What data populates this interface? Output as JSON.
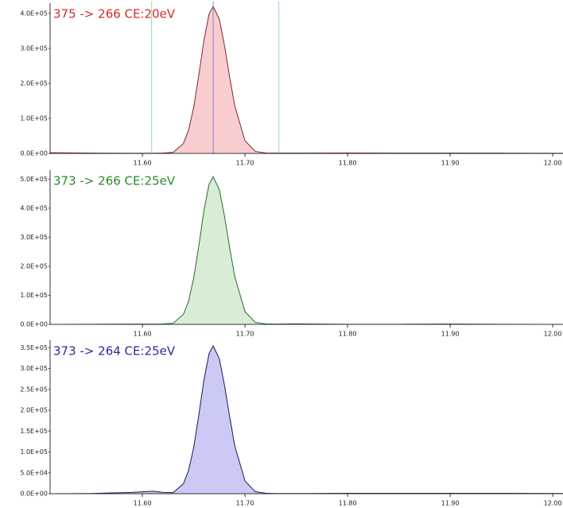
{
  "chart_data": [
    {
      "type": "area",
      "title": "375 -> 266 CE:20eV",
      "title_color": "#d42a2a",
      "color": "#7a2a2a",
      "fill": "#f9cdd0",
      "x": [
        11.51,
        11.55,
        11.59,
        11.61,
        11.62,
        11.63,
        11.64,
        11.645,
        11.65,
        11.655,
        11.66,
        11.665,
        11.669,
        11.675,
        11.68,
        11.685,
        11.69,
        11.7,
        11.71,
        11.72,
        11.73,
        11.75,
        11.8,
        11.85,
        11.9,
        11.95,
        12.01
      ],
      "values": [
        2000,
        1000,
        500,
        500,
        1000,
        3200,
        28500,
        66500,
        132000,
        224000,
        324000,
        399000,
        420000,
        383000,
        308000,
        219000,
        136000,
        36300,
        5800,
        1500,
        1000,
        1000,
        1500,
        1000,
        1000,
        1000,
        500
      ],
      "xlim": [
        11.51,
        12.01
      ],
      "ylim": [
        0,
        420000
      ],
      "xticks": [
        {
          "value": 11.6,
          "label": "11.60"
        },
        {
          "value": 11.7,
          "label": "11.70"
        },
        {
          "value": 11.8,
          "label": "11.80"
        },
        {
          "value": 11.9,
          "label": "11.90"
        },
        {
          "value": 12.0,
          "label": "12.00"
        }
      ],
      "yticks": [
        {
          "value": 0,
          "label": "0.0E+00"
        },
        {
          "value": 100000,
          "label": "1.0E+05"
        },
        {
          "value": 200000,
          "label": "2.0E+05"
        },
        {
          "value": 300000,
          "label": "3.0E+05"
        },
        {
          "value": 400000,
          "label": "4.0E+05"
        }
      ],
      "markers": [
        {
          "x": 11.609,
          "color": "#9ad69a"
        },
        {
          "x": 11.669,
          "color": "#8080e0"
        },
        {
          "x": 11.733,
          "color": "#9ad69a"
        }
      ]
    },
    {
      "type": "area",
      "title": "373 -> 266 CE:25eV",
      "title_color": "#2a8a2a",
      "color": "#2c6a2c",
      "fill": "#d8ecd6",
      "x": [
        11.51,
        11.55,
        11.59,
        11.61,
        11.62,
        11.63,
        11.64,
        11.645,
        11.65,
        11.655,
        11.66,
        11.665,
        11.669,
        11.675,
        11.68,
        11.685,
        11.69,
        11.7,
        11.71,
        11.72,
        11.73,
        11.75,
        11.8,
        11.85,
        11.9,
        11.95,
        12.01
      ],
      "values": [
        0,
        500,
        1000,
        1000,
        1500,
        3900,
        34500,
        80500,
        160000,
        271000,
        392000,
        483000,
        508000,
        463000,
        373000,
        265000,
        165000,
        43900,
        7000,
        1800,
        1000,
        2000,
        500,
        500,
        1500,
        500,
        0
      ],
      "xlim": [
        11.51,
        12.01
      ],
      "ylim": [
        0,
        520000
      ],
      "xticks": [
        {
          "value": 11.6,
          "label": "11.60"
        },
        {
          "value": 11.7,
          "label": "11.70"
        },
        {
          "value": 11.8,
          "label": "11.80"
        },
        {
          "value": 11.9,
          "label": "11.90"
        },
        {
          "value": 12.0,
          "label": "12.00"
        }
      ],
      "yticks": [
        {
          "value": 0,
          "label": "0.0E+00"
        },
        {
          "value": 100000,
          "label": "1.0E+05"
        },
        {
          "value": 200000,
          "label": "2.0E+05"
        },
        {
          "value": 300000,
          "label": "3.0E+05"
        },
        {
          "value": 400000,
          "label": "4.0E+05"
        },
        {
          "value": 500000,
          "label": "5.0E+05"
        }
      ]
    },
    {
      "type": "area",
      "title": "373 -> 264 CE:25eV",
      "title_color": "#2a2aa0",
      "color": "#1a1a5a",
      "fill": "#cacaf4",
      "x": [
        11.51,
        11.55,
        11.59,
        11.61,
        11.62,
        11.63,
        11.64,
        11.645,
        11.65,
        11.655,
        11.66,
        11.665,
        11.669,
        11.675,
        11.68,
        11.685,
        11.69,
        11.7,
        11.71,
        11.72,
        11.73,
        11.75,
        11.8,
        11.85,
        11.9,
        11.95,
        12.01
      ],
      "values": [
        0,
        500,
        3000,
        6000,
        3000,
        2700,
        24000,
        56000,
        111000,
        189000,
        273000,
        336000,
        354000,
        323000,
        260000,
        185000,
        115000,
        30600,
        4900,
        1300,
        500,
        500,
        1000,
        1000,
        1000,
        1000,
        500
      ],
      "xlim": [
        11.51,
        12.01
      ],
      "ylim": [
        0,
        360000
      ],
      "xticks": [
        {
          "value": 11.6,
          "label": "11.60"
        },
        {
          "value": 11.7,
          "label": "11.70"
        },
        {
          "value": 11.8,
          "label": "11.80"
        },
        {
          "value": 11.9,
          "label": "11.90"
        },
        {
          "value": 12.0,
          "label": "12.00"
        }
      ],
      "yticks": [
        {
          "value": 0,
          "label": "0.0E+00"
        },
        {
          "value": 50000,
          "label": "5.0E+04"
        },
        {
          "value": 100000,
          "label": "1.0E+05"
        },
        {
          "value": 150000,
          "label": "1.5E+05"
        },
        {
          "value": 200000,
          "label": "2.0E+05"
        },
        {
          "value": 250000,
          "label": "2.5E+05"
        },
        {
          "value": 300000,
          "label": "3.0E+05"
        },
        {
          "value": 350000,
          "label": "3.5E+05"
        }
      ]
    }
  ]
}
